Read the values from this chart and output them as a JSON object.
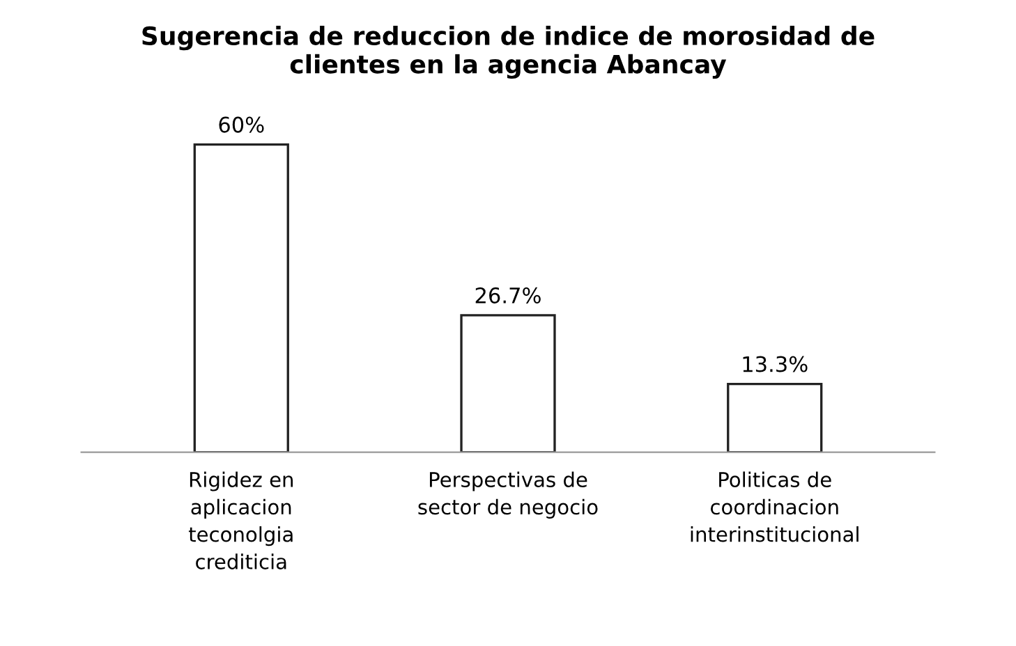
{
  "chart_data": {
    "type": "bar",
    "title": "Sugerencia de reduccion de indice de morosidad de\nclientes en la agencia Abancay",
    "categories": [
      "Rigidez en\naplicacion\nteconolgia\ncrediticia",
      "Perspectivas de\nsector de negocio",
      "Politicas de\ncoordinacion\ninterinstitucional"
    ],
    "values": [
      60,
      26.7,
      13.3
    ],
    "value_labels": [
      "60%",
      "26.7%",
      "13.3%"
    ],
    "color": "#ffffff",
    "grid": false,
    "legend": false
  }
}
